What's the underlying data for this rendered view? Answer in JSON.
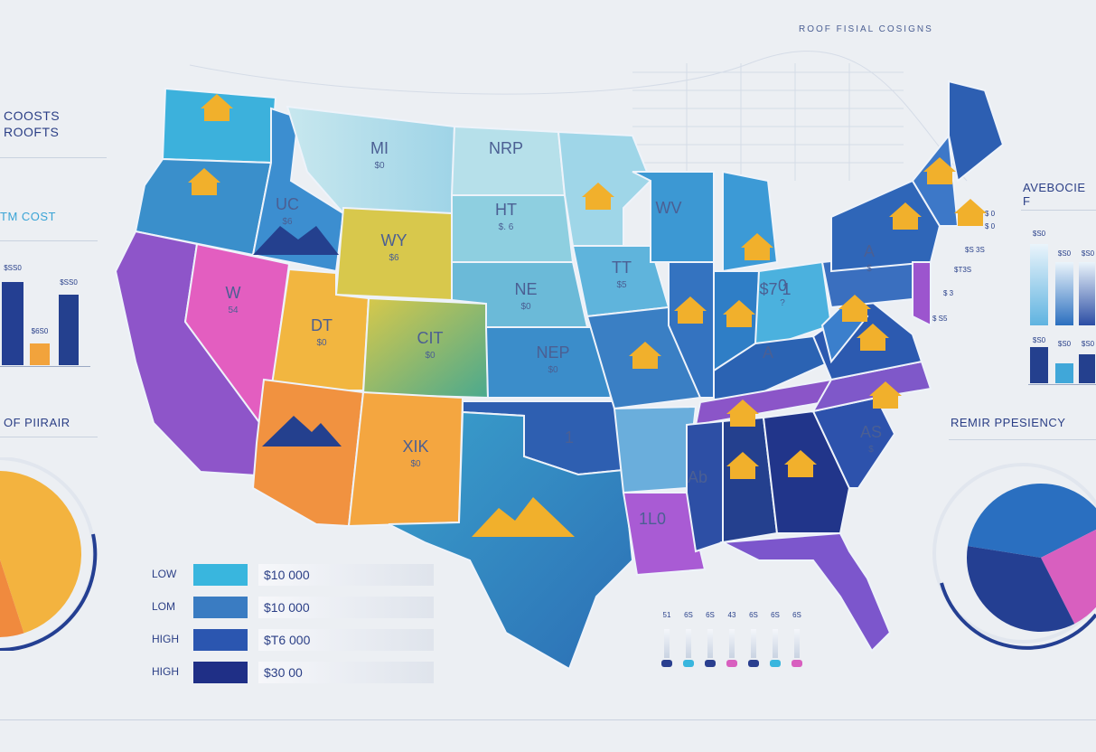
{
  "header": {
    "title": "ROOF FISIAL COSIGNS"
  },
  "left_panel": {
    "title_line1": "COOSTS",
    "title_line2": "ROOFTS",
    "cost_title": "TM COST",
    "bars": [
      {
        "label": "$SS0",
        "value": 100,
        "color": "#243f92"
      },
      {
        "label": "$6S0",
        "value": 22,
        "color": "#f2a33c"
      },
      {
        "label": "$SS0",
        "value": 80,
        "color": "#24408e"
      }
    ],
    "repair_title": "OF PIIRAIR",
    "pie": [
      {
        "value": 45,
        "color": "#f3b33f"
      },
      {
        "value": 35,
        "color": "#f08a3e"
      },
      {
        "value": 20,
        "color": "#a45bd4"
      }
    ]
  },
  "right_panel": {
    "average_title": "AVEBOCIE F",
    "bars": [
      {
        "label": "$S0",
        "value": 80,
        "color": "#9fcfea"
      },
      {
        "label": "$S0",
        "value": 70,
        "color": "#4aa3d8"
      },
      {
        "label": "$S0",
        "value": 60,
        "color": "#2b4da4"
      }
    ],
    "bars2": [
      {
        "label": "$S0",
        "value": 70,
        "color": "#24408e"
      },
      {
        "label": "$S0",
        "value": 40,
        "color": "#40a7d9"
      },
      {
        "label": "$S0",
        "value": 55,
        "color": "#24408e"
      }
    ],
    "side_labels": [
      "$ 0",
      "$ 0",
      "$S 3S",
      "$T3S",
      "$ 3",
      "$ S5"
    ],
    "frequency_title": "REMIR PPESIENCY",
    "pie": [
      {
        "value": 40,
        "color": "#2a6fc0"
      },
      {
        "value": 25,
        "color": "#d85fbf"
      },
      {
        "value": 35,
        "color": "#243f92"
      }
    ]
  },
  "legend": [
    {
      "label": "LOW",
      "value": "$10 000",
      "color": "#39b6de"
    },
    {
      "label": "LOM",
      "value": "$10 000",
      "color": "#3a7cc2"
    },
    {
      "label": "HIGH",
      "value": "$T6 000",
      "color": "#2b56b0"
    },
    {
      "label": "HIGH",
      "value": "$30 00",
      "color": "#1f2f86"
    }
  ],
  "mini_scale": {
    "labels": [
      "51",
      "6S",
      "6S",
      "43",
      "6S",
      "6S",
      "6S"
    ],
    "dots": [
      "#2a3f8f",
      "#39b6de",
      "#2a3f8f",
      "#d85fbf",
      "#2a3f8f",
      "#39b6de",
      "#d85fbf"
    ]
  },
  "states": [
    {
      "abbr": "MI",
      "value": "$0"
    },
    {
      "abbr": "NRP",
      "value": ""
    },
    {
      "abbr": "UC",
      "value": "$6"
    },
    {
      "abbr": "WY",
      "value": "$6"
    },
    {
      "abbr": "HT",
      "value": "$. 6"
    },
    {
      "abbr": "W",
      "value": "54"
    },
    {
      "abbr": "TT",
      "value": "$5"
    },
    {
      "abbr": "NE",
      "value": "$0"
    },
    {
      "abbr": "DT",
      "value": "$0"
    },
    {
      "abbr": "CIT",
      "value": "$0"
    },
    {
      "abbr": "NEP",
      "value": "$0"
    },
    {
      "abbr": "WV",
      "value": ""
    },
    {
      "abbr": "A",
      "value": "$"
    },
    {
      "abbr": "0",
      "value": "?"
    },
    {
      "abbr": "A",
      "value": ""
    },
    {
      "abbr": "XIK",
      "value": "$0"
    },
    {
      "abbr": "1",
      "value": ""
    },
    {
      "abbr": "AS",
      "value": "$"
    },
    {
      "abbr": "Ab",
      "value": ""
    },
    {
      "abbr": "$7 1",
      "value": ""
    },
    {
      "abbr": "1L0",
      "value": ""
    }
  ]
}
